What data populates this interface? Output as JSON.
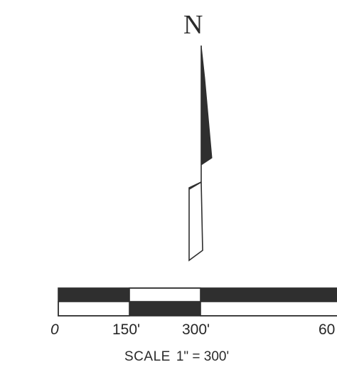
{
  "north_arrow": {
    "letter": "N"
  },
  "scale_bar": {
    "tick_labels": [
      "0",
      "150'",
      "300'",
      "60"
    ],
    "caption_label": "SCALE",
    "caption_value": "1\" = 300'"
  },
  "colors": {
    "ink": "#2f2f2f",
    "paper": "#ffffff"
  }
}
